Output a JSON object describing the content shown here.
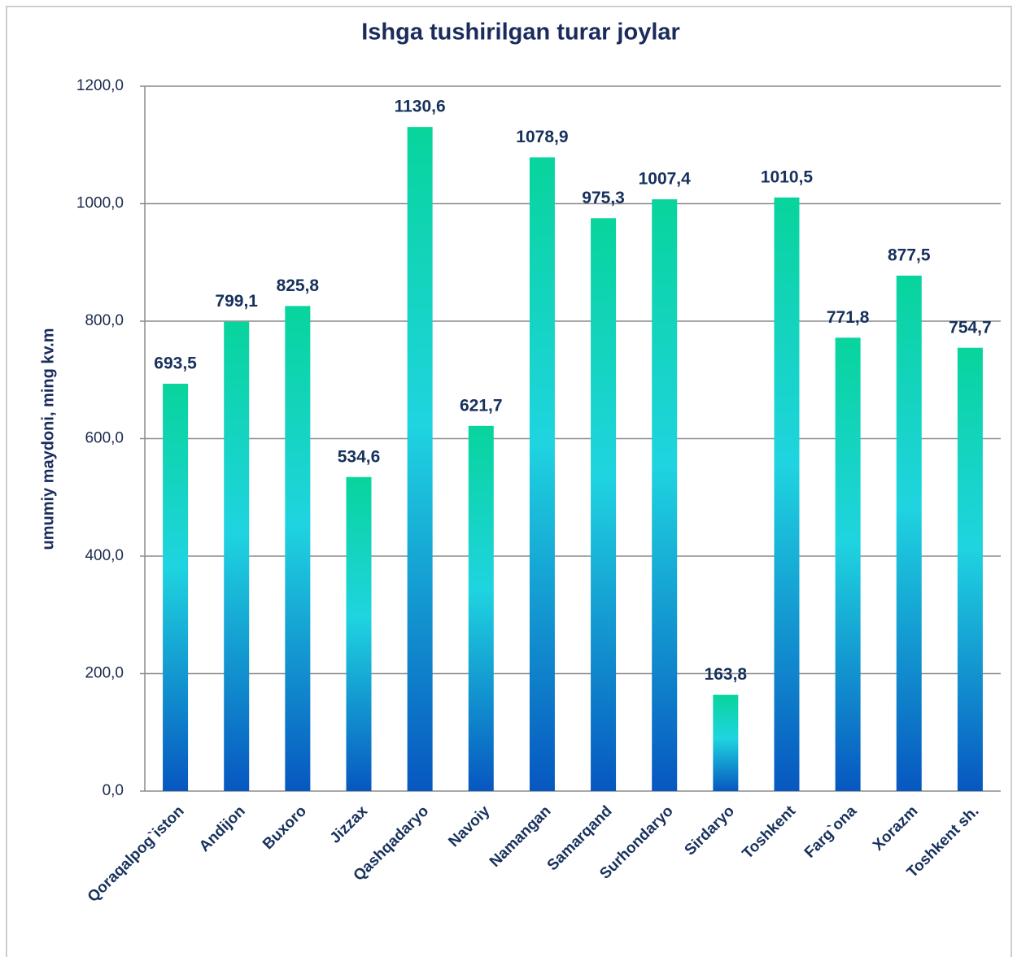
{
  "chart_data": {
    "type": "bar",
    "title": "Ishga tushirilgan turar joylar",
    "y_label": "umumiy maydoni, ming kv.m",
    "categories": [
      "Qoraqalpog`iston",
      "Andijon",
      "Buxoro",
      "Jizzax",
      "Qashqadaryo",
      "Navoiy",
      "Namangan",
      "Samarqand",
      "Surhondaryo",
      "Sirdaryo",
      "Toshkent",
      "Farg`ona",
      "Xorazm",
      "Toshkent sh."
    ],
    "values": [
      693.5,
      799.1,
      825.8,
      534.6,
      1130.6,
      621.7,
      1078.9,
      975.3,
      1007.4,
      163.8,
      1010.5,
      771.8,
      877.5,
      754.7
    ],
    "value_labels": [
      "693,5",
      "799,1",
      "825,8",
      "534,6",
      "1130,6",
      "621,7",
      "1078,9",
      "975,3",
      "1007,4",
      "163,8",
      "1010,5",
      "771,8",
      "877,5",
      "754,7"
    ],
    "colors": [
      "#0757c0",
      "#1fd4e0",
      "#08d49c"
    ],
    "ylim": [
      0,
      1200
    ],
    "yticks": [
      {
        "value": 0,
        "label": "0,0"
      },
      {
        "value": 200,
        "label": "200,0"
      },
      {
        "value": 400,
        "label": "400,0"
      },
      {
        "value": 600,
        "label": "600,0"
      },
      {
        "value": 800,
        "label": "800,0"
      },
      {
        "value": 1000,
        "label": "1000,0"
      },
      {
        "value": 1200,
        "label": "1200,0"
      }
    ],
    "grid": true
  }
}
